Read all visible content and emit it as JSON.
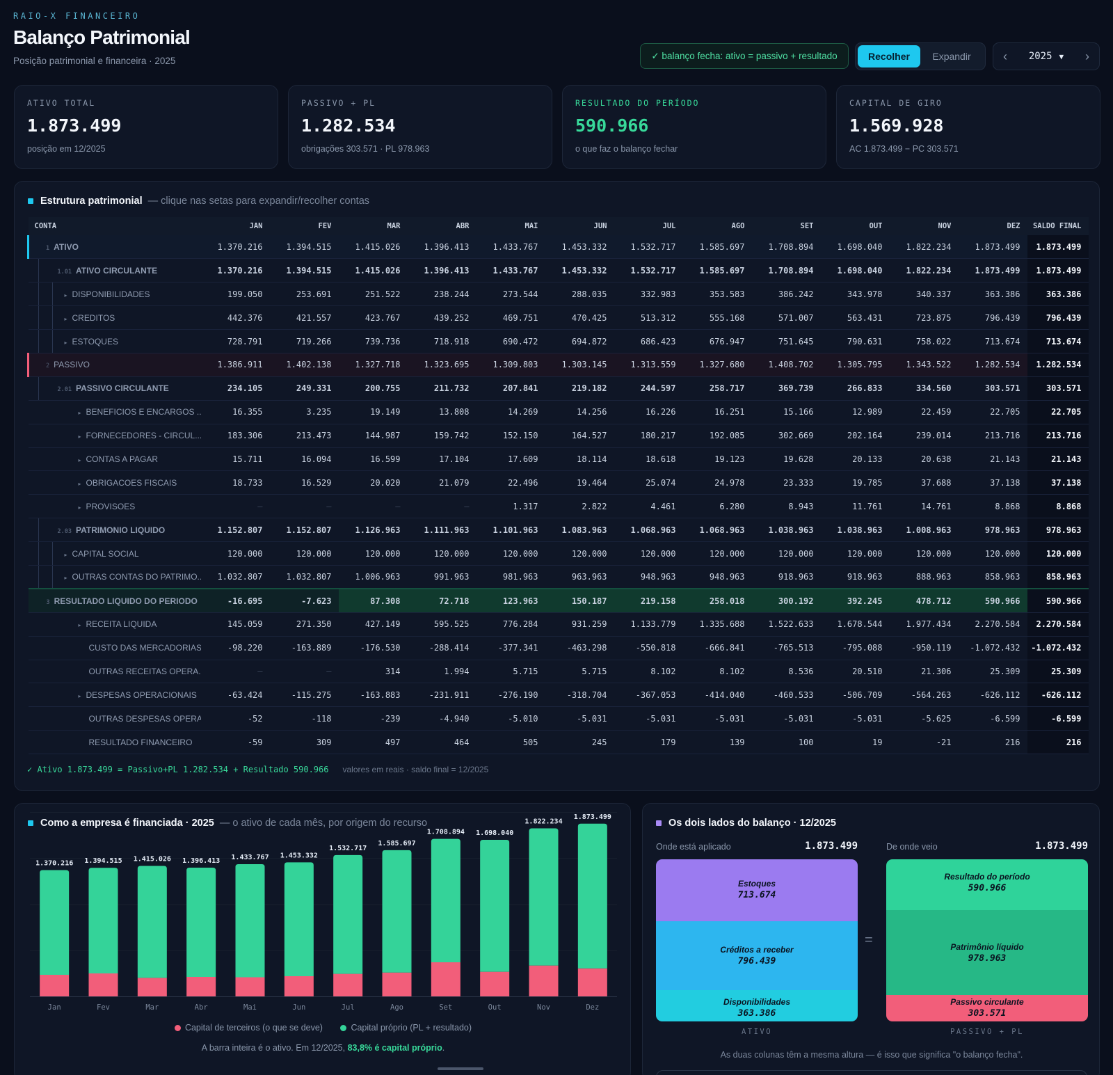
{
  "header": {
    "eyebrow": "RAIO-X FINANCEIRO",
    "title": "Balanço Patrimonial",
    "subtitle": "Posição patrimonial e financeira · 2025"
  },
  "status": "✓ balanço fecha: ativo = passivo + resultado",
  "toggle": {
    "collapse": "Recolher",
    "expand": "Expandir"
  },
  "year": "2025",
  "kpis": [
    {
      "label": "ATIVO TOTAL",
      "value": "1.873.499",
      "sub": "posição em 12/2025"
    },
    {
      "label": "PASSIVO + PL",
      "value": "1.282.534",
      "sub": "obrigações 303.571 · PL 978.963"
    },
    {
      "label": "RESULTADO DO PERÍODO",
      "value": "590.966",
      "sub": "o que faz o balanço fechar"
    },
    {
      "label": "CAPITAL DE GIRO",
      "value": "1.569.928",
      "sub": "AC 1.873.499 − PC 303.571"
    }
  ],
  "structure": {
    "title": "Estrutura patrimonial",
    "hint": "— clique nas setas para expandir/recolher contas",
    "columns": [
      "CONTA",
      "JAN",
      "FEV",
      "MAR",
      "ABR",
      "MAI",
      "JUN",
      "JUL",
      "AGO",
      "SET",
      "OUT",
      "NOV",
      "DEZ",
      "SALDO FINAL"
    ],
    "rows": [
      {
        "kind": "l0",
        "code": "1",
        "caret": false,
        "name": "ATIVO",
        "v": [
          "1.370.216",
          "1.394.515",
          "1.415.026",
          "1.396.413",
          "1.433.767",
          "1.453.332",
          "1.532.717",
          "1.585.697",
          "1.708.894",
          "1.698.040",
          "1.822.234",
          "1.873.499",
          "1.873.499"
        ]
      },
      {
        "kind": "l1",
        "code": "1.01",
        "caret": false,
        "name": "ATIVO CIRCULANTE",
        "v": [
          "1.370.216",
          "1.394.515",
          "1.415.026",
          "1.396.413",
          "1.433.767",
          "1.453.332",
          "1.532.717",
          "1.585.697",
          "1.708.894",
          "1.698.040",
          "1.822.234",
          "1.873.499",
          "1.873.499"
        ]
      },
      {
        "kind": "l2",
        "code": "",
        "caret": true,
        "name": "DISPONIBILIDADES",
        "v": [
          "199.050",
          "253.691",
          "251.522",
          "238.244",
          "273.544",
          "288.035",
          "332.983",
          "353.583",
          "386.242",
          "343.978",
          "340.337",
          "363.386",
          "363.386"
        ]
      },
      {
        "kind": "l2",
        "code": "",
        "caret": true,
        "name": "CREDITOS",
        "v": [
          "442.376",
          "421.557",
          "423.767",
          "439.252",
          "469.751",
          "470.425",
          "513.312",
          "555.168",
          "571.007",
          "563.431",
          "723.875",
          "796.439",
          "796.439"
        ]
      },
      {
        "kind": "l2",
        "code": "",
        "caret": true,
        "name": "ESTOQUES",
        "v": [
          "728.791",
          "719.266",
          "739.736",
          "718.918",
          "690.472",
          "694.872",
          "686.423",
          "676.947",
          "751.645",
          "790.631",
          "758.022",
          "713.674",
          "713.674"
        ]
      },
      {
        "kind": "l0 pas",
        "code": "2",
        "caret": false,
        "name": "PASSIVO",
        "v": [
          "1.386.911",
          "1.402.138",
          "1.327.718",
          "1.323.695",
          "1.309.803",
          "1.303.145",
          "1.313.559",
          "1.327.680",
          "1.408.702",
          "1.305.795",
          "1.343.522",
          "1.282.534",
          "1.282.534"
        ]
      },
      {
        "kind": "l1",
        "code": "2.01",
        "caret": false,
        "name": "PASSIVO CIRCULANTE",
        "v": [
          "234.105",
          "249.331",
          "200.755",
          "211.732",
          "207.841",
          "219.182",
          "244.597",
          "258.717",
          "369.739",
          "266.833",
          "334.560",
          "303.571",
          "303.571"
        ]
      },
      {
        "kind": "l3",
        "code": "",
        "caret": true,
        "name": "BENEFICIOS E ENCARGOS ...",
        "v": [
          "16.355",
          "3.235",
          "19.149",
          "13.808",
          "14.269",
          "14.256",
          "16.226",
          "16.251",
          "15.166",
          "12.989",
          "22.459",
          "22.705",
          "22.705"
        ]
      },
      {
        "kind": "l3",
        "code": "",
        "caret": true,
        "name": "FORNECEDORES - CIRCUL...",
        "v": [
          "183.306",
          "213.473",
          "144.987",
          "159.742",
          "152.150",
          "164.527",
          "180.217",
          "192.085",
          "302.669",
          "202.164",
          "239.014",
          "213.716",
          "213.716"
        ]
      },
      {
        "kind": "l3",
        "code": "",
        "caret": true,
        "name": "CONTAS A PAGAR",
        "v": [
          "15.711",
          "16.094",
          "16.599",
          "17.104",
          "17.609",
          "18.114",
          "18.618",
          "19.123",
          "19.628",
          "20.133",
          "20.638",
          "21.143",
          "21.143"
        ]
      },
      {
        "kind": "l3",
        "code": "",
        "caret": true,
        "name": "OBRIGACOES FISCAIS",
        "v": [
          "18.733",
          "16.529",
          "20.020",
          "21.079",
          "22.496",
          "19.464",
          "25.074",
          "24.978",
          "23.333",
          "19.785",
          "37.688",
          "37.138",
          "37.138"
        ]
      },
      {
        "kind": "l3",
        "code": "",
        "caret": true,
        "name": "PROVISOES",
        "v": [
          "–",
          "–",
          "–",
          "–",
          "1.317",
          "2.822",
          "4.461",
          "6.280",
          "8.943",
          "11.761",
          "14.761",
          "8.868",
          "8.868"
        ]
      },
      {
        "kind": "l1",
        "code": "2.03",
        "caret": false,
        "name": "PATRIMONIO LIQUIDO",
        "v": [
          "1.152.807",
          "1.152.807",
          "1.126.963",
          "1.111.963",
          "1.101.963",
          "1.083.963",
          "1.068.963",
          "1.068.963",
          "1.038.963",
          "1.038.963",
          "1.008.963",
          "978.963",
          "978.963"
        ]
      },
      {
        "kind": "l2",
        "code": "",
        "caret": true,
        "name": "CAPITAL SOCIAL",
        "v": [
          "120.000",
          "120.000",
          "120.000",
          "120.000",
          "120.000",
          "120.000",
          "120.000",
          "120.000",
          "120.000",
          "120.000",
          "120.000",
          "120.000",
          "120.000"
        ]
      },
      {
        "kind": "l2",
        "code": "",
        "caret": true,
        "name": "OUTRAS CONTAS DO PATRIMO...",
        "v": [
          "1.032.807",
          "1.032.807",
          "1.006.963",
          "991.963",
          "981.963",
          "963.963",
          "948.963",
          "948.963",
          "918.963",
          "918.963",
          "888.963",
          "858.963",
          "858.963"
        ]
      },
      {
        "kind": "res",
        "code": "3",
        "caret": false,
        "name": "RESULTADO LIQUIDO DO PERIODO",
        "v": [
          "-16.695",
          "-7.623",
          "87.308",
          "72.718",
          "123.963",
          "150.187",
          "219.158",
          "258.018",
          "300.192",
          "392.245",
          "478.712",
          "590.966",
          "590.966"
        ]
      },
      {
        "kind": "l3",
        "code": "",
        "caret": true,
        "name": "RECEITA LIQUIDA",
        "v": [
          "145.059",
          "271.350",
          "427.149",
          "595.525",
          "776.284",
          "931.259",
          "1.133.779",
          "1.335.688",
          "1.522.633",
          "1.678.544",
          "1.977.434",
          "2.270.584",
          "2.270.584"
        ]
      },
      {
        "kind": "l3",
        "code": "",
        "caret": false,
        "name": "CUSTO DAS MERCADORIAS",
        "v": [
          "-98.220",
          "-163.889",
          "-176.530",
          "-288.414",
          "-377.341",
          "-463.298",
          "-550.818",
          "-666.841",
          "-765.513",
          "-795.088",
          "-950.119",
          "-1.072.432",
          "-1.072.432"
        ]
      },
      {
        "kind": "l3",
        "code": "",
        "caret": false,
        "name": "OUTRAS RECEITAS OPERA...",
        "v": [
          "–",
          "–",
          "314",
          "1.994",
          "5.715",
          "5.715",
          "8.102",
          "8.102",
          "8.536",
          "20.510",
          "21.306",
          "25.309",
          "25.309"
        ]
      },
      {
        "kind": "l3",
        "code": "",
        "caret": true,
        "name": "DESPESAS OPERACIONAIS",
        "v": [
          "-63.424",
          "-115.275",
          "-163.883",
          "-231.911",
          "-276.190",
          "-318.704",
          "-367.053",
          "-414.040",
          "-460.533",
          "-506.709",
          "-564.263",
          "-626.112",
          "-626.112"
        ]
      },
      {
        "kind": "l3",
        "code": "",
        "caret": false,
        "name": "OUTRAS DESPESAS OPERA...",
        "v": [
          "-52",
          "-118",
          "-239",
          "-4.940",
          "-5.010",
          "-5.031",
          "-5.031",
          "-5.031",
          "-5.031",
          "-5.031",
          "-5.625",
          "-6.599",
          "-6.599"
        ]
      },
      {
        "kind": "l3",
        "code": "",
        "caret": false,
        "name": "RESULTADO FINANCEIRO",
        "v": [
          "-59",
          "309",
          "497",
          "464",
          "505",
          "245",
          "179",
          "139",
          "100",
          "19",
          "-21",
          "216",
          "216"
        ]
      }
    ],
    "note": "✓ Ativo 1.873.499 = Passivo+PL 1.282.534 + Resultado 590.966",
    "note_sub": "valores em reais · saldo final = 12/2025"
  },
  "financing": {
    "title": "Como a empresa é financiada · 2025",
    "hint": "— o ativo de cada mês, por origem do recurso",
    "legend_third": "Capital de terceiros (o que se deve)",
    "legend_own": "Capital próprio (PL + resultado)",
    "caption_pre": "A barra inteira é o ativo. Em 12/2025,",
    "caption_bold": "83,8% é capital próprio",
    "caption_post": ".",
    "colors": {
      "third": "#f25e7a",
      "own": "#34d399"
    }
  },
  "chart_data": {
    "type": "bar",
    "stacked": true,
    "categories": [
      "Jan",
      "Fev",
      "Mar",
      "Abr",
      "Mai",
      "Jun",
      "Jul",
      "Ago",
      "Set",
      "Out",
      "Nov",
      "Dez"
    ],
    "series": [
      {
        "name": "Capital de terceiros (o que se deve)",
        "values": [
          234105,
          249331,
          200755,
          211732,
          207841,
          219182,
          244597,
          258717,
          369739,
          266833,
          334560,
          303571
        ]
      },
      {
        "name": "Capital próprio (PL + resultado)",
        "values": [
          1136111,
          1145184,
          1214271,
          1184681,
          1225926,
          1234150,
          1288120,
          1326980,
          1339155,
          1431207,
          1487674,
          1569928
        ]
      }
    ],
    "totals": [
      1370216,
      1394515,
      1415026,
      1396413,
      1433767,
      1453332,
      1532717,
      1585697,
      1708894,
      1698040,
      1822234,
      1873499
    ],
    "total_labels": [
      "1.370.216",
      "1.394.515",
      "1.415.026",
      "1.396.413",
      "1.433.767",
      "1.453.332",
      "1.532.717",
      "1.585.697",
      "1.708.894",
      "1.698.040",
      "1.822.234",
      "1.873.499"
    ],
    "ylim": [
      0,
      2000000
    ],
    "grid": true,
    "legend": "bottom"
  },
  "two_sides": {
    "title": "Os dois lados do balanço · 12/2025",
    "left": {
      "head": "Onde está aplicado",
      "total": "1.873.499",
      "foot": "ATIVO",
      "segments": [
        {
          "name": "Estoques",
          "value": "713.674",
          "amount": 713674,
          "color": "#9b7bf0"
        },
        {
          "name": "Créditos a receber",
          "value": "796.439",
          "amount": 796439,
          "color": "#2db6ef"
        },
        {
          "name": "Disponibilidades",
          "value": "363.386",
          "amount": 363386,
          "color": "#22cde0"
        }
      ]
    },
    "right": {
      "head": "De onde veio",
      "total": "1.873.499",
      "foot": "PASSIVO + PL",
      "segments": [
        {
          "name": "Resultado do período",
          "value": "590.966",
          "amount": 590966,
          "color": "#2fd39a"
        },
        {
          "name": "Patrimônio líquido",
          "value": "978.963",
          "amount": 978963,
          "color": "#26b886"
        },
        {
          "name": "Passivo circulante",
          "value": "303.571",
          "amount": 303571,
          "color": "#f25e7a"
        }
      ]
    },
    "eq": "=",
    "caption": "As duas colunas têm a mesma altura — é isso que significa \"o balanço fecha\"."
  }
}
